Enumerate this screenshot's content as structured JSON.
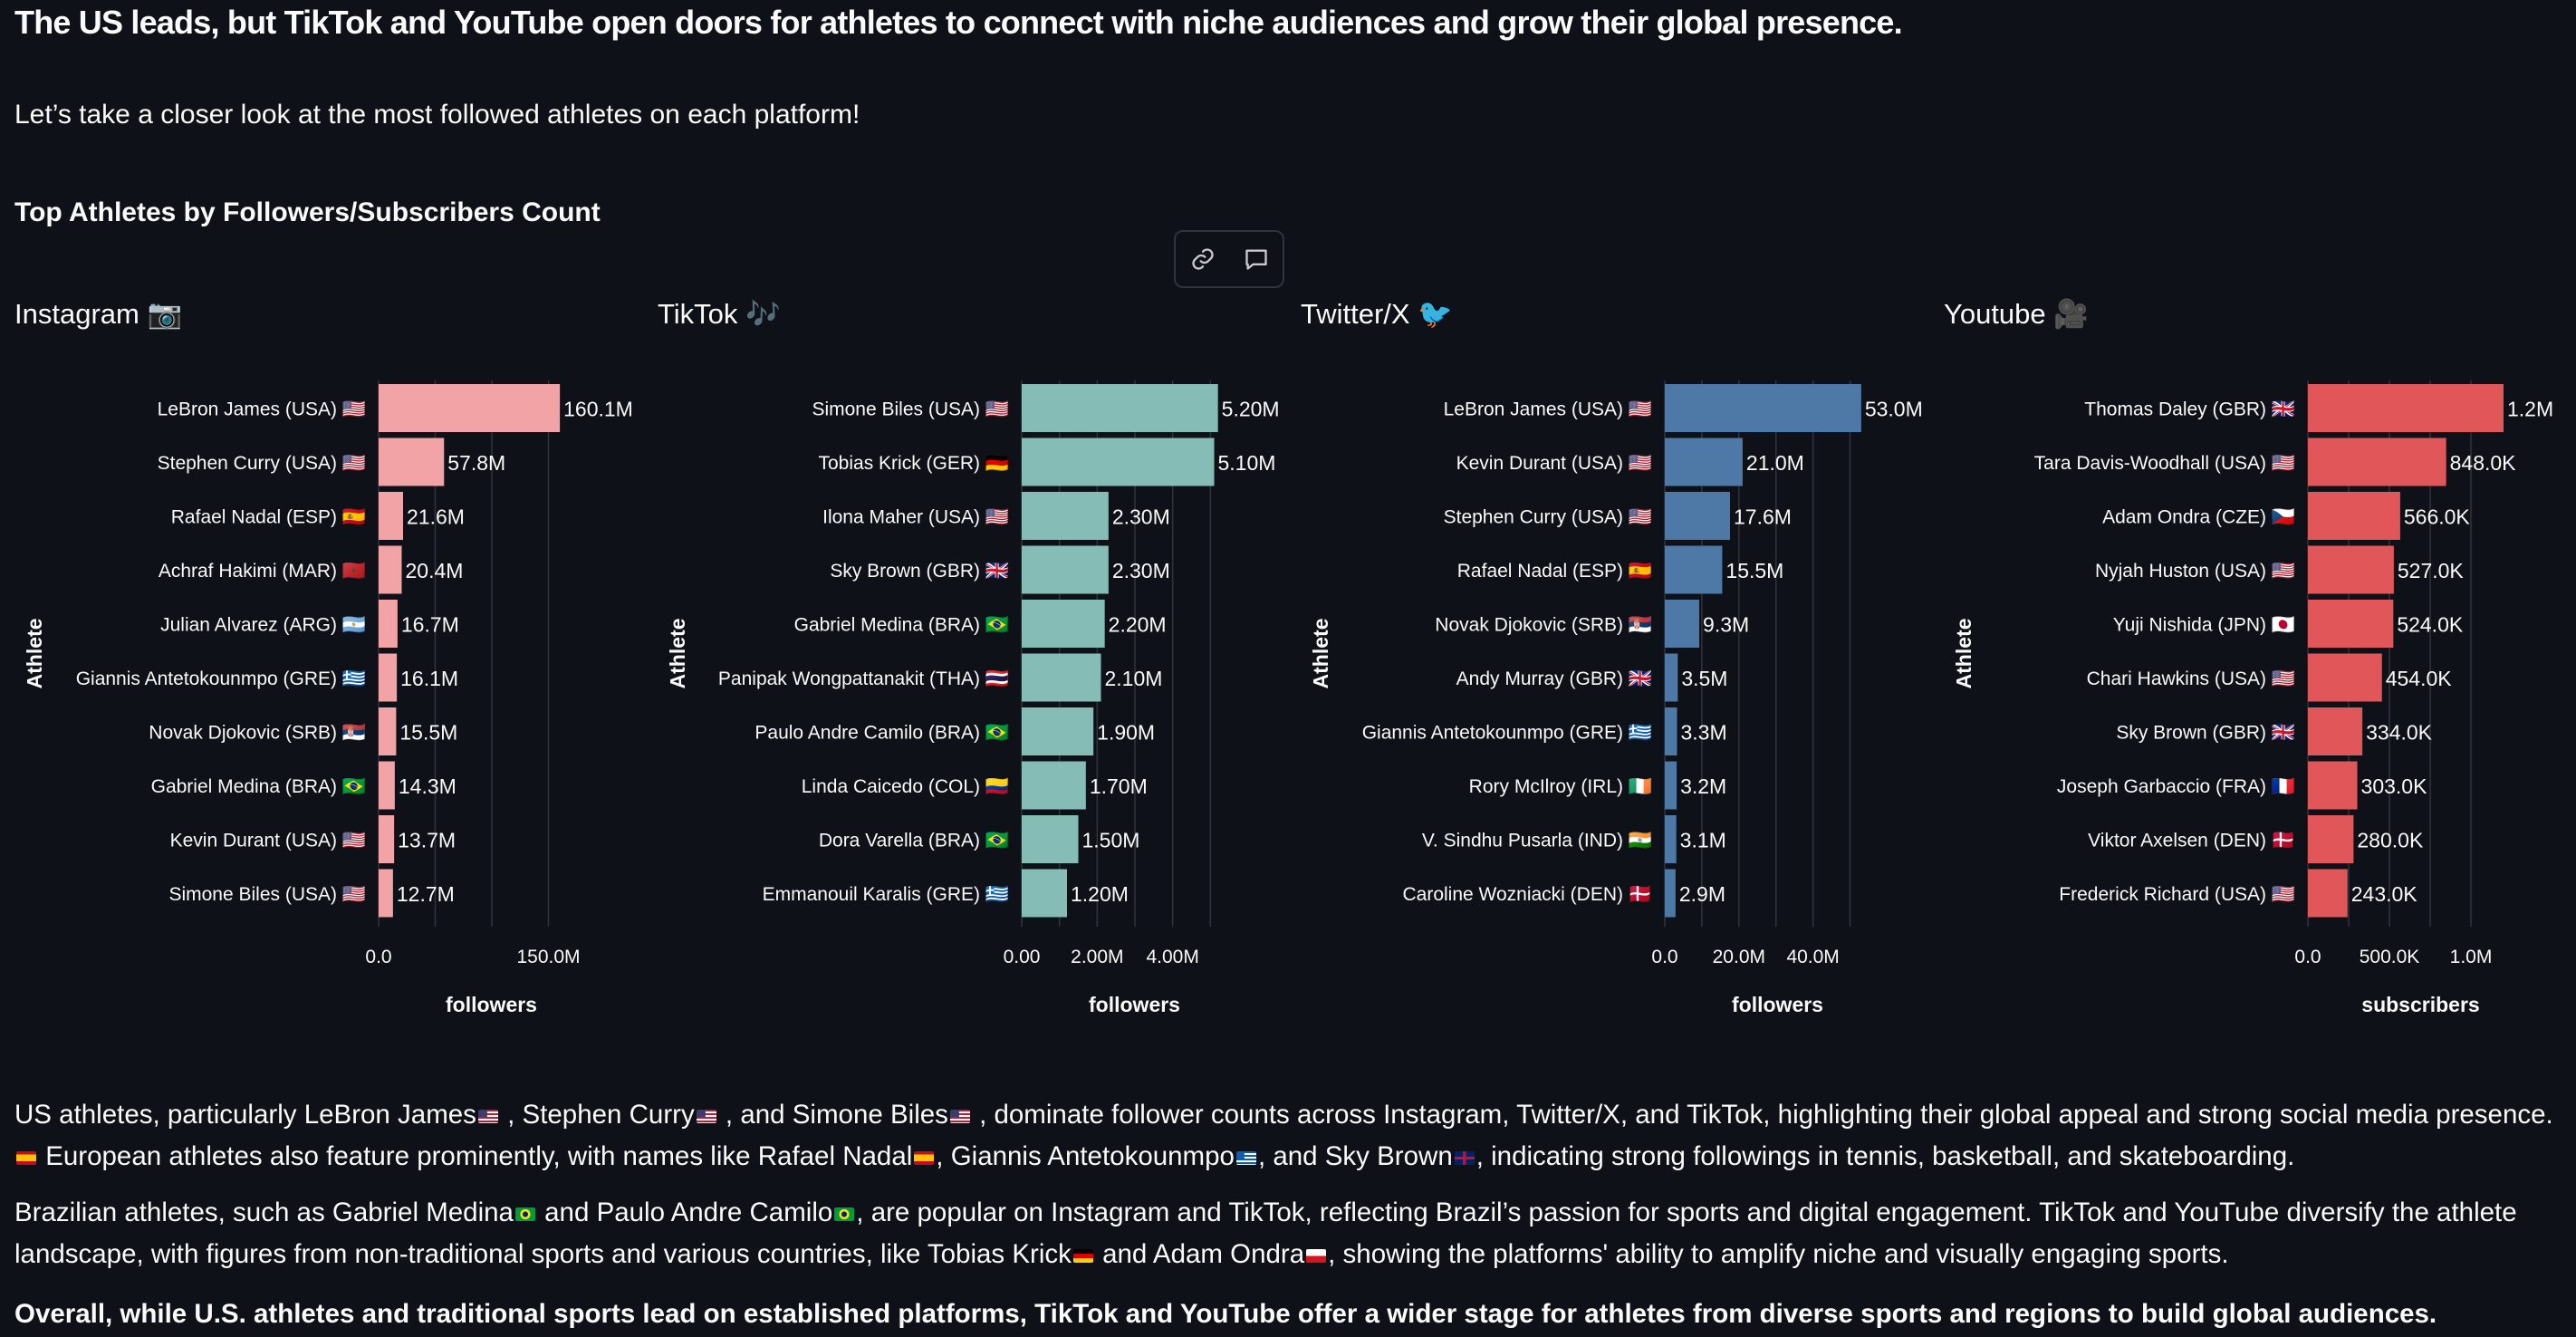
{
  "header": {
    "title": "The US leads, but TikTok and YouTube open doors for athletes to connect with niche audiences and grow their global presence.",
    "intro": "Let’s take a closer look at the most followed athletes on each platform!",
    "section_title": "Top Athletes by Followers/Subscribers Count"
  },
  "toolbar": {
    "link_icon": "link-icon",
    "comment_icon": "comment-icon"
  },
  "colors": {
    "background": "#0e1117",
    "grid": "#31333f",
    "instagram": "#f2a3a5",
    "tiktok": "#86bcb6",
    "twitter": "#4e79a7",
    "youtube": "#e15759"
  },
  "chart_data": [
    {
      "type": "bar",
      "orientation": "horizontal",
      "title": "Instagram 📷",
      "ylabel": "Athlete",
      "xlabel": "followers",
      "categories": [
        "LeBron James (USA) 🇺🇸",
        "Stephen Curry (USA) 🇺🇸",
        "Rafael Nadal (ESP) 🇪🇸",
        "Achraf Hakimi (MAR) 🇲🇦",
        "Julian Alvarez (ARG) 🇦🇷",
        "Giannis Antetokounmpo (GRE) 🇬🇷",
        "Novak Djokovic (SRB) 🇷🇸",
        "Gabriel Medina (BRA) 🇧🇷",
        "Kevin Durant (USA) 🇺🇸",
        "Simone Biles (USA) 🇺🇸"
      ],
      "values": [
        160.1,
        57.8,
        21.6,
        20.4,
        16.7,
        16.1,
        15.5,
        14.3,
        13.7,
        12.7
      ],
      "labels": [
        "160.1M",
        "57.8M",
        "21.6M",
        "20.4M",
        "16.7M",
        "16.1M",
        "15.5M",
        "14.3M",
        "13.7M",
        "12.7M"
      ],
      "unit": "M",
      "xlim": [
        0,
        180
      ],
      "xticks": [
        0,
        150
      ],
      "xtick_labels": [
        "0.0",
        "150.0M"
      ],
      "grid_values": [
        0,
        50,
        100,
        150
      ],
      "color": "#f2a3a5"
    },
    {
      "type": "bar",
      "orientation": "horizontal",
      "title": "TikTok 🎶",
      "ylabel": "Athlete",
      "xlabel": "followers",
      "categories": [
        "Simone Biles (USA) 🇺🇸",
        "Tobias Krick (GER) 🇩🇪",
        "Ilona Maher (USA) 🇺🇸",
        "Sky Brown (GBR) 🇬🇧",
        "Gabriel Medina (BRA) 🇧🇷",
        "Panipak Wongpattanakit (THA) 🇹🇭",
        "Paulo Andre Camilo (BRA) 🇧🇷",
        "Linda Caicedo (COL) 🇨🇴",
        "Dora Varella (BRA) 🇧🇷",
        "Emmanouil Karalis (GRE) 🇬🇷"
      ],
      "values": [
        5.2,
        5.1,
        2.3,
        2.3,
        2.2,
        2.1,
        1.9,
        1.7,
        1.5,
        1.2
      ],
      "labels": [
        "5.20M",
        "5.10M",
        "2.30M",
        "2.30M",
        "2.20M",
        "2.10M",
        "1.90M",
        "1.70M",
        "1.50M",
        "1.20M"
      ],
      "unit": "M",
      "xlim": [
        0,
        5.4
      ],
      "xticks": [
        0,
        2,
        4
      ],
      "xtick_labels": [
        "0.00",
        "2.00M",
        "4.00M"
      ],
      "grid_values": [
        0,
        1,
        2,
        3,
        4,
        5
      ],
      "color": "#86bcb6"
    },
    {
      "type": "bar",
      "orientation": "horizontal",
      "title": "Twitter/X 🐦",
      "ylabel": "Athlete",
      "xlabel": "followers",
      "categories": [
        "LeBron James (USA) 🇺🇸",
        "Kevin Durant (USA) 🇺🇸",
        "Stephen Curry (USA) 🇺🇸",
        "Rafael Nadal (ESP) 🇪🇸",
        "Novak Djokovic (SRB) 🇷🇸",
        "Andy Murray (GBR) 🇬🇧",
        "Giannis Antetokounmpo (GRE) 🇬🇷",
        "Rory McIlroy (IRL) 🇮🇪",
        "V. Sindhu Pusarla (IND) 🇮🇳",
        "Caroline Wozniacki (DEN) 🇩🇰"
      ],
      "values": [
        53.0,
        21.0,
        17.6,
        15.5,
        9.3,
        3.5,
        3.3,
        3.2,
        3.1,
        2.9
      ],
      "labels": [
        "53.0M",
        "21.0M",
        "17.6M",
        "15.5M",
        "9.3M",
        "3.5M",
        "3.3M",
        "3.2M",
        "3.1M",
        "2.9M"
      ],
      "unit": "M",
      "xlim": [
        0,
        55
      ],
      "xticks": [
        0,
        20,
        40
      ],
      "xtick_labels": [
        "0.0",
        "20.0M",
        "40.0M"
      ],
      "grid_values": [
        0,
        10,
        20,
        30,
        40,
        50
      ],
      "color": "#4e79a7"
    },
    {
      "type": "bar",
      "orientation": "horizontal",
      "title": "Youtube 🎥",
      "ylabel": "Athlete",
      "xlabel": "subscribers",
      "categories": [
        "Thomas Daley (GBR) 🇬🇧",
        "Tara Davis-Woodhall (USA) 🇺🇸",
        "Adam Ondra (CZE) 🇨🇿",
        "Nyjah Huston (USA) 🇺🇸",
        "Yuji Nishida (JPN) 🇯🇵",
        "Chari Hawkins (USA) 🇺🇸",
        "Sky Brown (GBR) 🇬🇧",
        "Joseph Garbaccio (FRA) 🇫🇷",
        "Viktor Axelsen (DEN) 🇩🇰",
        "Frederick Richard (USA) 🇺🇸"
      ],
      "values": [
        1200,
        848,
        566,
        527,
        524,
        454,
        334,
        303,
        280,
        243
      ],
      "labels": [
        "1.2M",
        "848.0K",
        "566.0K",
        "527.0K",
        "524.0K",
        "454.0K",
        "334.0K",
        "303.0K",
        "280.0K",
        "243.0K"
      ],
      "unit": "K",
      "xlim": [
        0,
        1250
      ],
      "xticks": [
        0,
        500,
        1000
      ],
      "xtick_labels": [
        "0.0",
        "500.0K",
        "1.0M"
      ],
      "grid_values": [
        0,
        250,
        500,
        750,
        1000
      ],
      "color": "#e15759"
    }
  ],
  "paragraphs": {
    "p1": [
      {
        "t": "US athletes, particularly LeBron James"
      },
      {
        "f": "us"
      },
      {
        "t": " , Stephen Curry"
      },
      {
        "f": "us"
      },
      {
        "t": " , and Simone Biles"
      },
      {
        "f": "us"
      },
      {
        "t": " , dominate follower counts across Instagram, Twitter/X, and TikTok, highlighting their global appeal and strong social media presence. "
      },
      {
        "f": "es"
      },
      {
        "t": " European athletes also feature prominently, with names like Rafael Nadal"
      },
      {
        "f": "es"
      },
      {
        "t": ", Giannis Antetokounmpo"
      },
      {
        "f": "gr"
      },
      {
        "t": ", and Sky Brown"
      },
      {
        "f": "gb"
      },
      {
        "t": ", indicating strong followings in tennis, basketball, and skateboarding."
      }
    ],
    "p2": [
      {
        "t": "Brazilian athletes, such as Gabriel Medina"
      },
      {
        "f": "br"
      },
      {
        "t": " and Paulo Andre Camilo"
      },
      {
        "f": "br"
      },
      {
        "t": ", are popular on Instagram and TikTok, reflecting Brazil’s passion for sports and digital engagement. TikTok and YouTube diversify the athlete landscape, with figures from non-traditional sports and various countries, like Tobias Krick"
      },
      {
        "f": "de"
      },
      {
        "t": " and Adam Ondra"
      },
      {
        "f": "cz"
      },
      {
        "t": ", showing the platforms' ability to amplify niche and visually engaging sports."
      }
    ],
    "p3": "Overall, while U.S. athletes and traditional sports lead on established platforms, TikTok and YouTube offer a wider stage for athletes from diverse sports and regions to build global audiences."
  }
}
